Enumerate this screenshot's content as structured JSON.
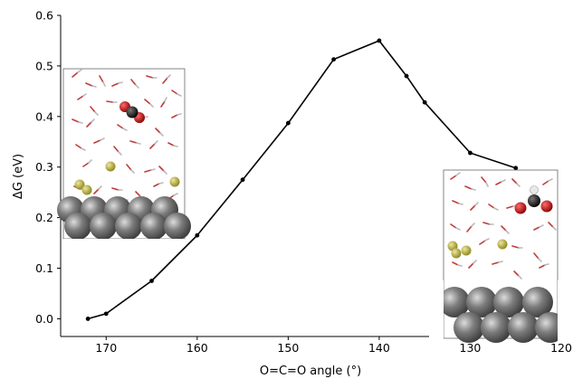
{
  "chart_data": {
    "type": "line",
    "xlabel": "O=C=O angle (°)",
    "ylabel": "ΔG (eV)",
    "xlim": [
      175,
      120
    ],
    "ylim": [
      -0.035,
      0.6
    ],
    "x_reversed": true,
    "xticks": [
      170,
      160,
      150,
      140,
      130,
      120
    ],
    "yticks": [
      0.0,
      0.1,
      0.2,
      0.3,
      0.4,
      0.5,
      0.6
    ],
    "xtick_labels": [
      "170",
      "160",
      "150",
      "140",
      "130",
      "120"
    ],
    "ytick_labels": [
      "0.0",
      "0.1",
      "0.2",
      "0.3",
      "0.4",
      "0.5",
      "0.6"
    ],
    "grid": false,
    "series": [
      {
        "color": "#000000",
        "marker": "circle",
        "x": [
          172,
          170,
          165,
          160,
          155,
          150,
          145,
          140,
          137,
          135,
          130,
          125
        ],
        "y": [
          0.0,
          0.01,
          0.075,
          0.165,
          0.275,
          0.387,
          0.513,
          0.55,
          0.48,
          0.428,
          0.328,
          0.298
        ]
      }
    ],
    "insets": [
      {
        "name": "initial-state-snapshot",
        "depicts": "linear CO2 above metal surface in water with adsorbed atoms"
      },
      {
        "name": "final-state-snapshot",
        "depicts": "bent CO2 intermediate near metal surface in water with adsorbed atoms"
      }
    ]
  }
}
